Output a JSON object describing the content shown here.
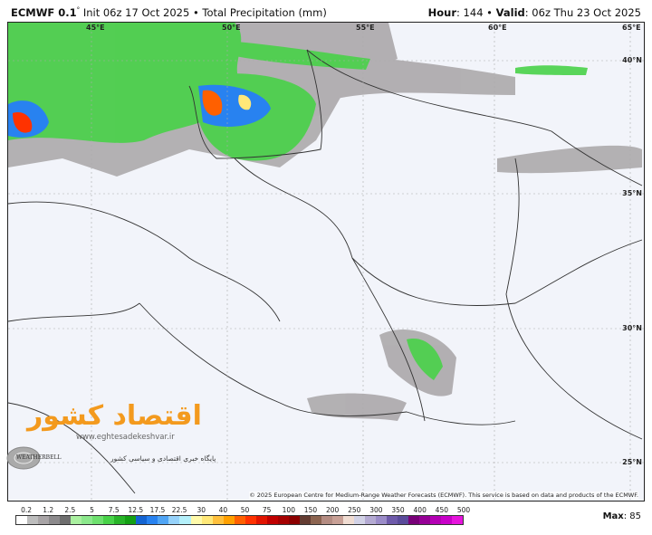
{
  "header": {
    "model": "ECMWF 0.1",
    "degree": "°",
    "init": "Init 06z 17 Oct 2025",
    "separator": "•",
    "field": "Total Precipitation (mm)",
    "hour_label": "Hour",
    "hour_value": ": 144",
    "valid_label": "Valid",
    "valid_value": ": 06z Thu 23 Oct 2025"
  },
  "map": {
    "lon_labels": [
      "45°E",
      "50°E",
      "55°E",
      "60°E",
      "65°E"
    ],
    "lat_labels": [
      "40°N",
      "35°N",
      "30°N",
      "25°N"
    ],
    "copyright": "© 2025 European Centre for Medium-Range Weather Forecasts (ECMWF). This service is based on data and products of the ECMWF."
  },
  "watermark": {
    "logo_text": "اقتصاد کشور",
    "url": "www.eghtesadekeshvar.ir",
    "tagline": "پایگاه خبری اقتصادی و سیاسی کشور",
    "weatherbell": "WEATHERBELL"
  },
  "colorbar": {
    "labels": [
      "0.2",
      "1.2",
      "2.5",
      "5",
      "7.5",
      "12.5",
      "17.5",
      "22.5",
      "30",
      "40",
      "50",
      "75",
      "100",
      "150",
      "200",
      "250",
      "300",
      "350",
      "400",
      "450",
      "500"
    ],
    "colors": [
      "#ffffff",
      "#bdbdbd",
      "#a8a4a6",
      "#8c8a8c",
      "#6e6e6e",
      "#aaf0a0",
      "#8ce88c",
      "#6ee06e",
      "#48d248",
      "#28b428",
      "#14a014",
      "#1464d2",
      "#2882f0",
      "#50a5f5",
      "#96d2fa",
      "#b4f0fa",
      "#fffaaa",
      "#ffe878",
      "#ffc03c",
      "#ffa000",
      "#ff6000",
      "#ff3200",
      "#e11400",
      "#c00000",
      "#a50000",
      "#8c0000",
      "#643c32",
      "#8c6450",
      "#b48c82",
      "#c8a096",
      "#f0dcd2",
      "#d2d2e6",
      "#b4aad2",
      "#9b8cc8",
      "#6e5aaa",
      "#5a4b9b",
      "#780078",
      "#960096",
      "#b400b4",
      "#c800c8",
      "#e614dc"
    ]
  },
  "max": {
    "label": "Max",
    "value": ": 85"
  }
}
